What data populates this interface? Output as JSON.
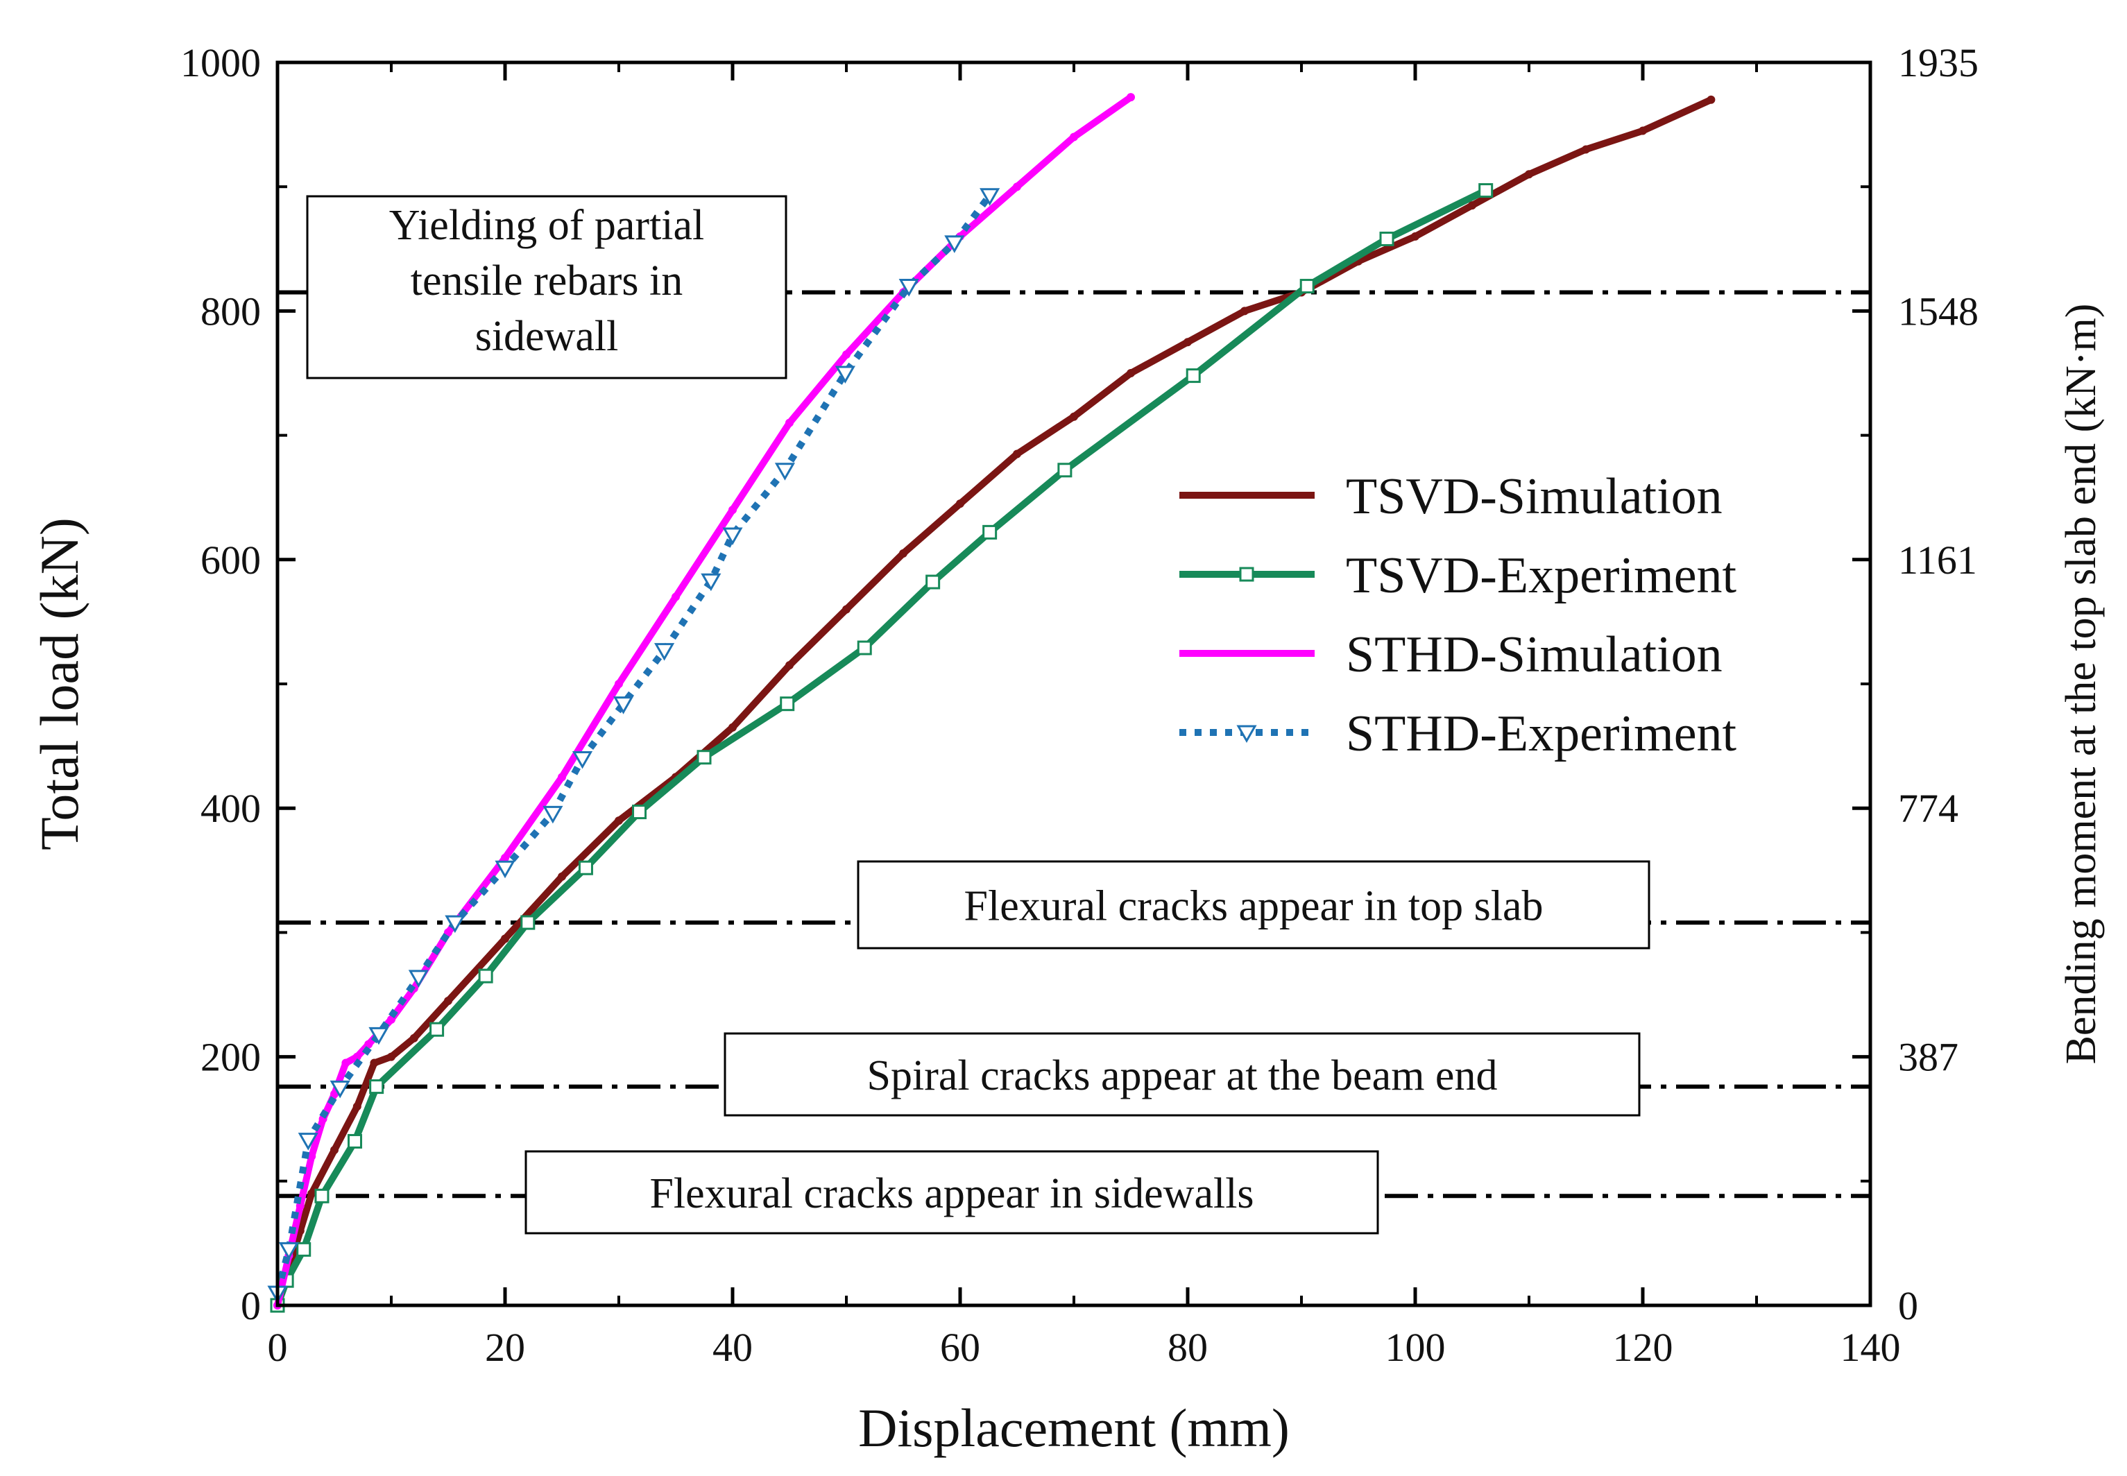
{
  "chart_data": {
    "type": "line",
    "xlabel": "Displacement (mm)",
    "ylabel": "Total load  (kN)",
    "y2label": "Bending moment at the top slab end (kN·m)",
    "xlim": [
      0,
      140
    ],
    "ylim": [
      0,
      1000
    ],
    "xticks": [
      0,
      20,
      40,
      60,
      80,
      100,
      120,
      140
    ],
    "yticks": [
      0,
      200,
      400,
      600,
      800,
      1000
    ],
    "y2ticks": [
      {
        "at": 0,
        "label": "0"
      },
      {
        "at": 200,
        "label": "387"
      },
      {
        "at": 400,
        "label": "774"
      },
      {
        "at": 600,
        "label": "1161"
      },
      {
        "at": 800,
        "label": "1548"
      },
      {
        "at": 1000,
        "label": "1935"
      }
    ],
    "grid": false,
    "legend_position": "right",
    "series": [
      {
        "name": "TSVD-Simulation",
        "color": "#7b1513",
        "style": "solid",
        "marker": "none",
        "x": [
          0,
          1,
          2,
          3,
          5,
          7,
          8.5,
          10,
          12,
          15,
          20,
          25,
          30,
          35,
          40,
          45,
          50,
          55,
          60,
          65,
          70,
          75,
          80,
          85,
          90,
          95,
          100,
          105,
          110,
          115,
          120,
          126
        ],
        "y": [
          0,
          30,
          60,
          90,
          125,
          160,
          195,
          200,
          215,
          245,
          295,
          345,
          390,
          425,
          465,
          515,
          560,
          605,
          645,
          685,
          715,
          750,
          775,
          800,
          815,
          840,
          860,
          885,
          910,
          930,
          945,
          970
        ]
      },
      {
        "name": "TSVD-Experiment",
        "color": "#178a59",
        "style": "solid",
        "marker": "square",
        "x": [
          0,
          0.8,
          2.3,
          3.9,
          6.8,
          8.7,
          14,
          18.3,
          22,
          27.1,
          31.8,
          37.5,
          44.8,
          51.6,
          57.6,
          62.6,
          69.2,
          80.5,
          90.5,
          97.5,
          106.2
        ],
        "y": [
          0,
          20,
          45,
          88,
          132,
          176,
          222,
          265,
          308,
          352,
          397,
          441,
          484,
          529,
          582,
          622,
          672,
          748,
          820,
          858,
          897
        ]
      },
      {
        "name": "STHD-Simulation",
        "color": "#ff00ff",
        "style": "solid",
        "marker": "none",
        "x": [
          0,
          1,
          2,
          3,
          4,
          5,
          6,
          7,
          8,
          9,
          10,
          12,
          15,
          20,
          25,
          30,
          35,
          40,
          45,
          50,
          55,
          60,
          65,
          70,
          75
        ],
        "y": [
          0,
          40,
          80,
          120,
          150,
          170,
          195,
          200,
          210,
          220,
          230,
          255,
          300,
          360,
          425,
          500,
          570,
          640,
          710,
          765,
          815,
          860,
          900,
          940,
          972
        ]
      },
      {
        "name": "STHD-Experiment",
        "color": "#1f73b4",
        "style": "dotted",
        "marker": "triangle-down",
        "x": [
          0,
          1,
          2.7,
          5.5,
          8.9,
          12.4,
          15.6,
          20,
          24.2,
          26.8,
          30.4,
          34,
          38.1,
          40,
          44.6,
          49.9,
          55.5,
          59.5,
          62.6
        ],
        "y": [
          10,
          45,
          133,
          175,
          218,
          264,
          308,
          352,
          396,
          440,
          484,
          527,
          583,
          620,
          672,
          750,
          820,
          855,
          893
        ]
      }
    ],
    "reference_lines": [
      {
        "y": 815,
        "label": "Yielding of partial tensile rebars in sidewall",
        "label_lines": [
          "Yielding of partial",
          "tensile rebars in",
          "sidewall"
        ]
      },
      {
        "y": 308,
        "label": "Flexural cracks appear in top slab"
      },
      {
        "y": 176,
        "label": "Spiral cracks appear at the beam end"
      },
      {
        "y": 88,
        "label": "Flexural cracks appear in sidewalls"
      }
    ]
  }
}
